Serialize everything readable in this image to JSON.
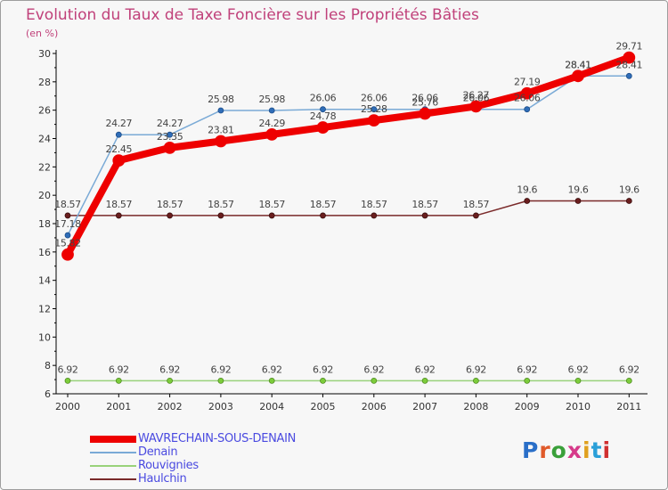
{
  "chart_data": {
    "type": "line",
    "title": "Evolution du Taux de Taxe Foncière sur les Propriétés Bâties",
    "ylabel": "(en %)",
    "xlabel": "",
    "ylim": [
      6,
      30
    ],
    "yticks": [
      6,
      8,
      10,
      12,
      14,
      16,
      18,
      20,
      22,
      24,
      26,
      28,
      30
    ],
    "categories": [
      "2000",
      "2001",
      "2002",
      "2003",
      "2004",
      "2005",
      "2006",
      "2007",
      "2008",
      "2009",
      "2010",
      "2011"
    ],
    "series": [
      {
        "name": "WAVRECHAIN-SOUS-DENAIN",
        "color": "#ee0000",
        "values": [
          15.82,
          22.45,
          23.35,
          23.81,
          24.29,
          24.78,
          25.28,
          25.76,
          26.27,
          27.19,
          28.41,
          29.71
        ]
      },
      {
        "name": "Denain",
        "color": "#7aaad6",
        "values": [
          17.18,
          24.27,
          24.27,
          25.98,
          25.98,
          26.06,
          26.06,
          26.06,
          26.06,
          26.06,
          28.41,
          28.41
        ]
      },
      {
        "name": "Rouvignies",
        "color": "#99d27a",
        "values": [
          6.92,
          6.92,
          6.92,
          6.92,
          6.92,
          6.92,
          6.92,
          6.92,
          6.92,
          6.92,
          6.92,
          6.92
        ]
      },
      {
        "name": "Haulchin",
        "color": "#7a2a2a",
        "values": [
          18.57,
          18.57,
          18.57,
          18.57,
          18.57,
          18.57,
          18.57,
          18.57,
          18.57,
          19.6,
          19.6,
          19.6
        ]
      }
    ],
    "value_labels": {
      "WAVRECHAIN-SOUS-DENAIN": [
        "15.82",
        "22.45",
        "23.35",
        "23.81",
        "24.29",
        "24.78",
        "25.28",
        "25.76",
        "26.27",
        "27.19",
        "28.41",
        "29.71"
      ],
      "Denain": [
        "17.18",
        "24.27",
        "24.27",
        "25.98",
        "25.98",
        "26.06",
        "26.06",
        "26.06",
        "26.06",
        "26.06",
        "28.41",
        "28.41"
      ],
      "Rouvignies": [
        "6.92",
        "6.92",
        "6.92",
        "6.92",
        "6.92",
        "6.92",
        "6.92",
        "6.92",
        "6.92",
        "6.92",
        "6.92",
        "6.92"
      ],
      "Haulchin": [
        "18.57",
        "18.57",
        "18.57",
        "18.57",
        "18.57",
        "18.57",
        "18.57",
        "18.57",
        "18.57",
        "19.6",
        "19.6",
        "19.6"
      ]
    },
    "legend": "bottom-left",
    "grid": false
  },
  "logo_text": "Proxiti",
  "logo_colors": [
    "#2a6fc8",
    "#e05a2a",
    "#3aa03a",
    "#d63a8a",
    "#e0a020",
    "#2a9fd8",
    "#d03030"
  ]
}
